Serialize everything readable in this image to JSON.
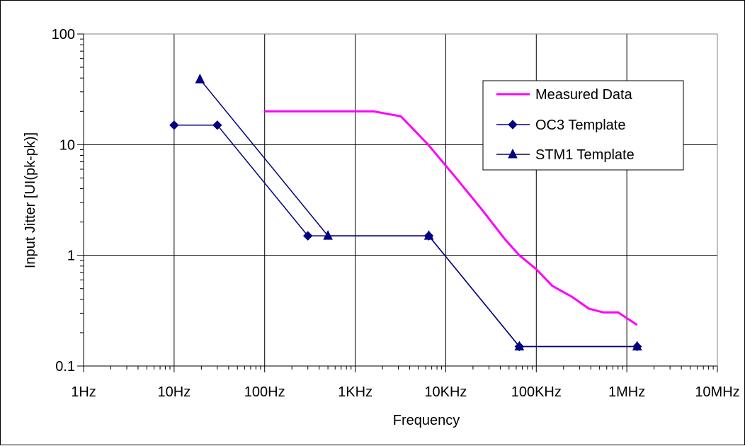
{
  "chart_data": {
    "type": "line",
    "xscale": "log",
    "yscale": "log",
    "xlabel": "Frequency",
    "ylabel": "Input Jitter [UI(pk-pk)]",
    "xlim": [
      1,
      10000000
    ],
    "ylim": [
      0.1,
      100
    ],
    "grid": true,
    "legend_position": "top-right",
    "x_ticks": [
      {
        "value": 1,
        "label": "1Hz"
      },
      {
        "value": 10,
        "label": "10Hz"
      },
      {
        "value": 100,
        "label": "100Hz"
      },
      {
        "value": 1000,
        "label": "1KHz"
      },
      {
        "value": 10000,
        "label": "10KHz"
      },
      {
        "value": 100000,
        "label": "100KHz"
      },
      {
        "value": 1000000,
        "label": "1MHz"
      },
      {
        "value": 10000000,
        "label": "10MHz"
      }
    ],
    "y_ticks": [
      {
        "value": 0.1,
        "label": "0.1"
      },
      {
        "value": 1,
        "label": "1"
      },
      {
        "value": 10,
        "label": "10"
      },
      {
        "value": 100,
        "label": "100"
      }
    ],
    "series": [
      {
        "name": "Measured Data",
        "color": "#ff00ff",
        "marker": "none",
        "x": [
          100,
          1600,
          3200,
          6400,
          12500,
          25000,
          45000,
          65000,
          100000,
          150000,
          250000,
          380000,
          550000,
          800000,
          1300000
        ],
        "y": [
          20,
          20,
          18,
          10,
          5.2,
          2.6,
          1.4,
          1.0,
          0.75,
          0.53,
          0.42,
          0.33,
          0.305,
          0.305,
          0.235
        ]
      },
      {
        "name": "OC3 Template",
        "color": "#000080",
        "marker": "diamond",
        "x": [
          10,
          30,
          300,
          6500,
          65000,
          1300000
        ],
        "y": [
          15,
          15,
          1.5,
          1.5,
          0.15,
          0.15
        ]
      },
      {
        "name": "STM1 Template",
        "color": "#000080",
        "marker": "triangle",
        "x": [
          19.3,
          500,
          6500,
          65000,
          1300000
        ],
        "y": [
          38.9,
          1.5,
          1.5,
          0.15,
          0.15
        ]
      }
    ]
  }
}
